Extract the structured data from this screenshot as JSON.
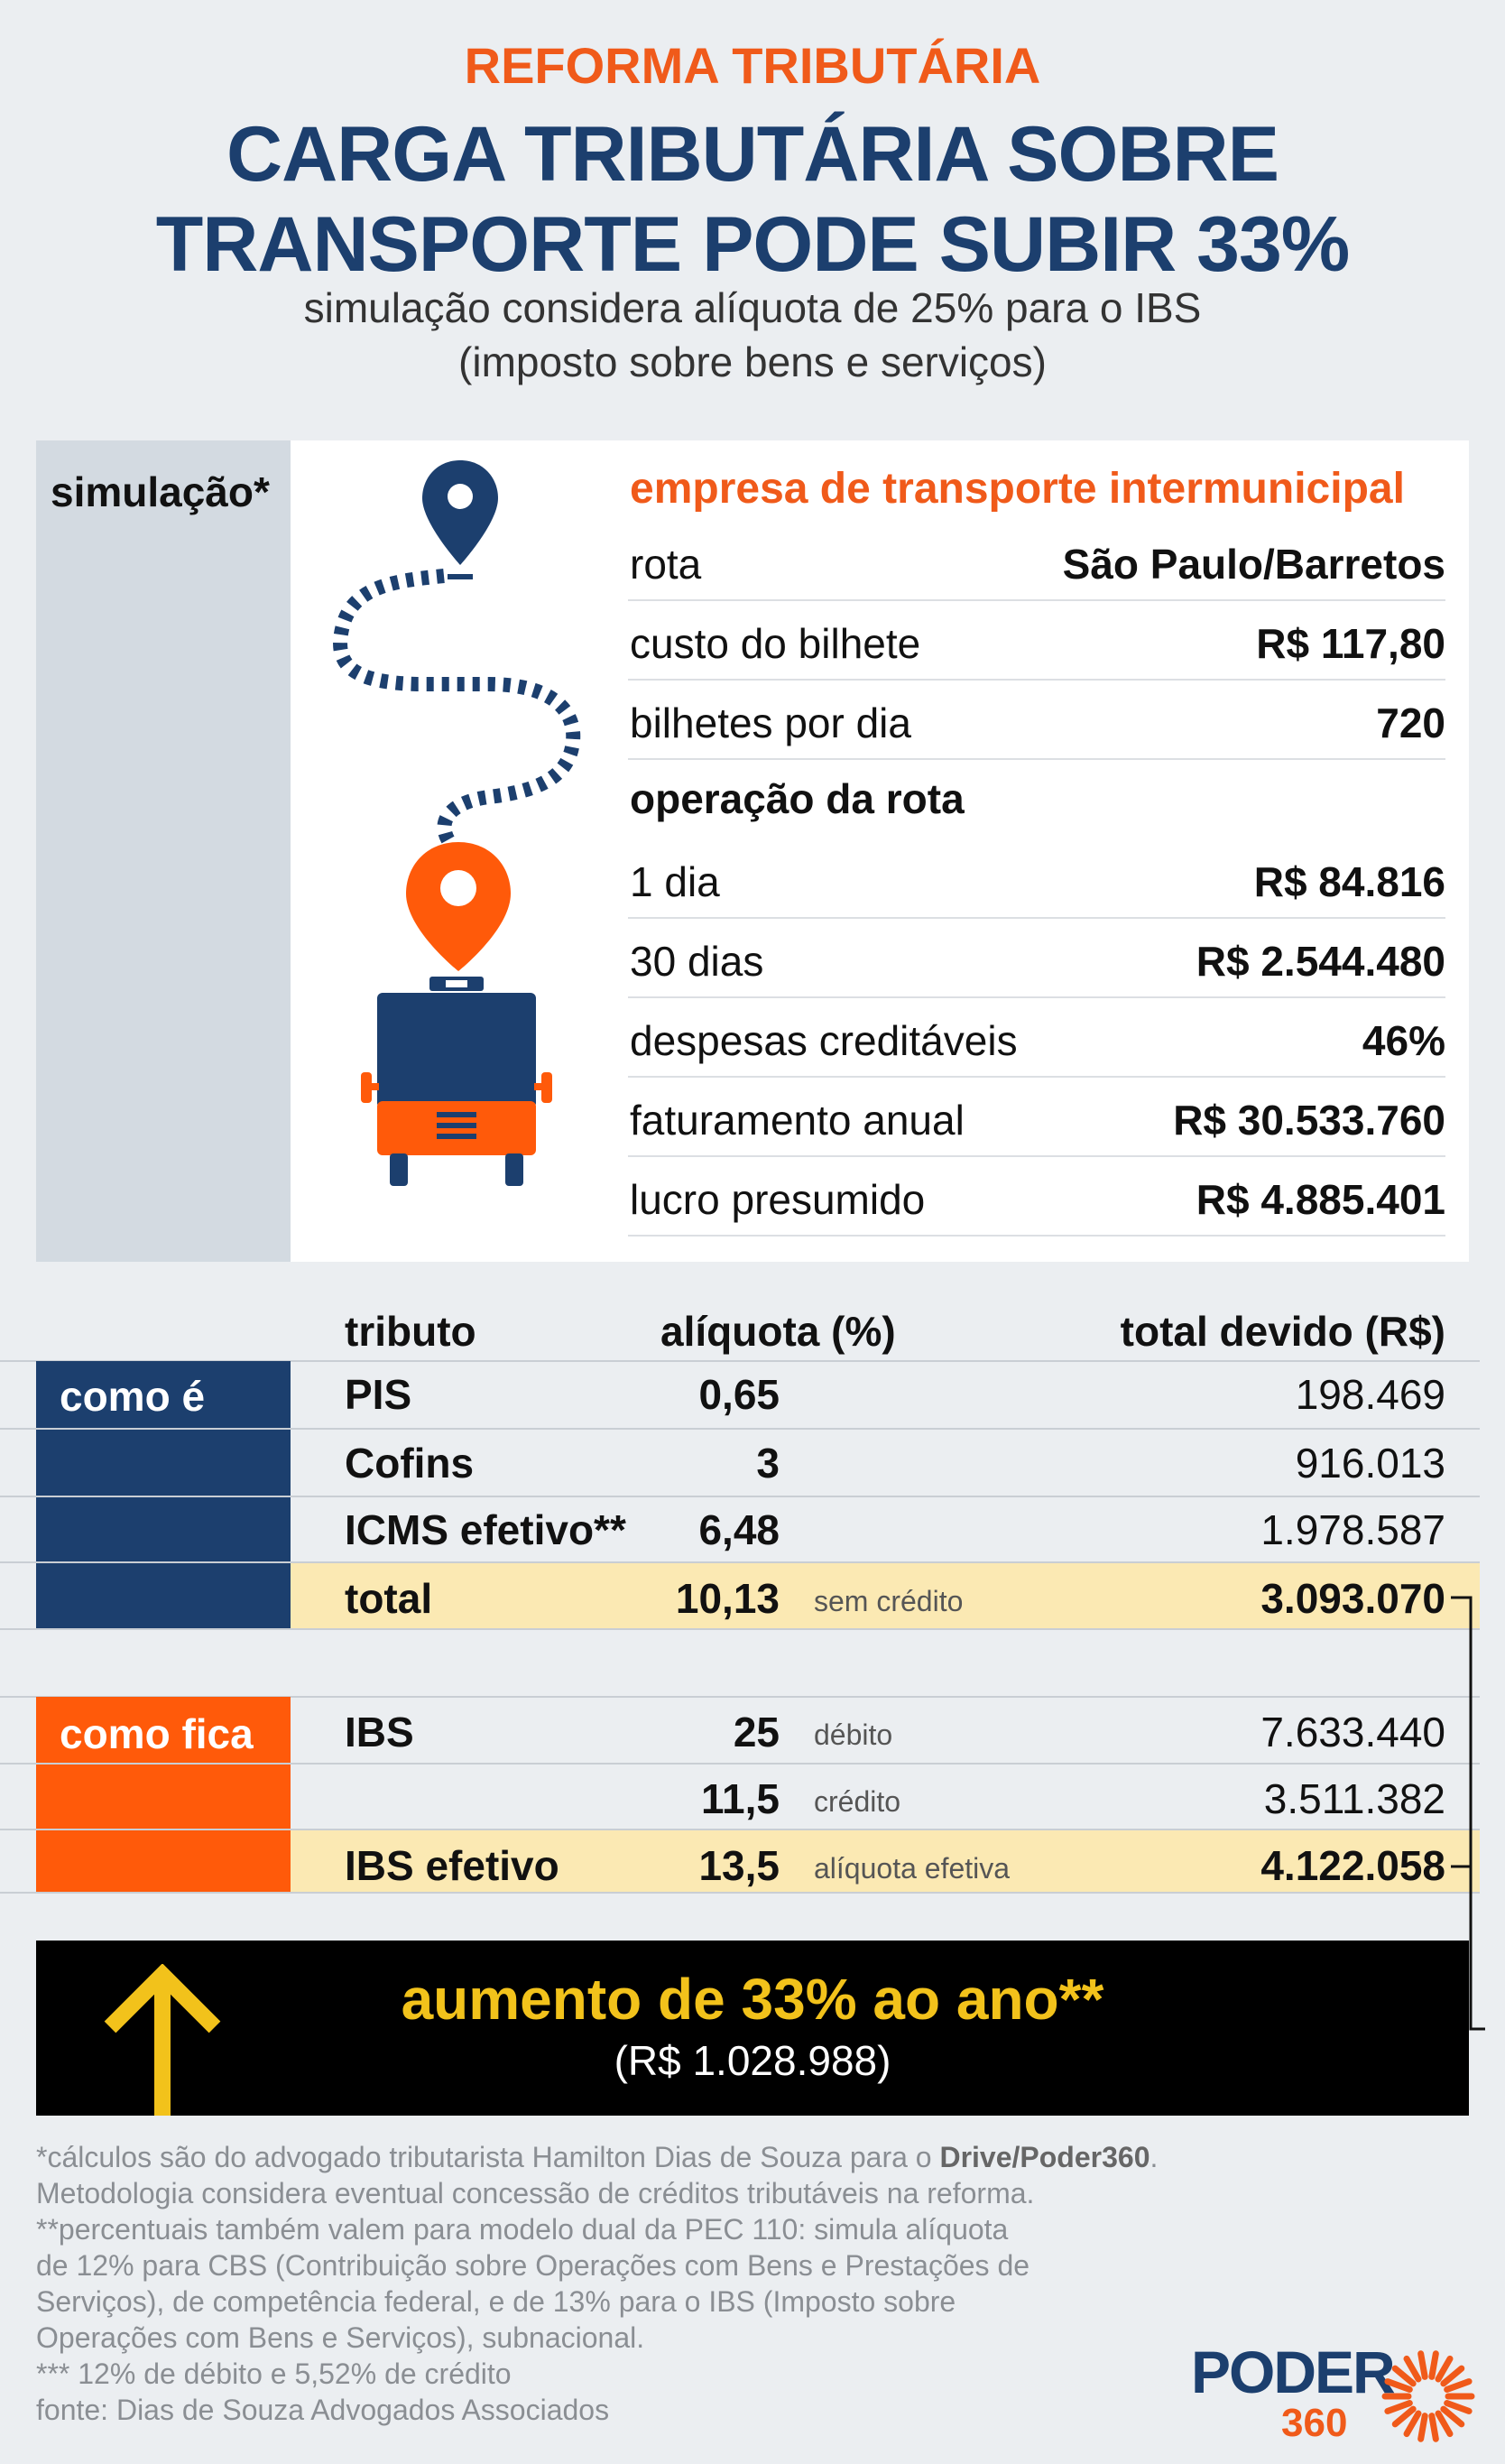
{
  "header": {
    "kicker": "REFORMA TRIBUTÁRIA",
    "title_line1": "CARGA TRIBUTÁRIA SOBRE",
    "title_line2": "TRANSPORTE PODE SUBIR 33%",
    "subtitle_line1": "simulação considera alíquota de 25% para o IBS",
    "subtitle_line2": "(imposto sobre bens e serviços)"
  },
  "simulation": {
    "label": "simulação*",
    "company_title": "empresa de transporte intermunicipal",
    "rows": [
      {
        "label": "rota",
        "value": "São Paulo/Barretos"
      },
      {
        "label": "custo do bilhete",
        "value": "R$ 117,80"
      },
      {
        "label": "bilhetes por dia",
        "value": "720"
      }
    ],
    "operation_title": "operação da rota",
    "operation_rows": [
      {
        "label": "1 dia",
        "value": "R$ 84.816"
      },
      {
        "label": "30 dias",
        "value": "R$ 2.544.480"
      },
      {
        "label": "despesas creditáveis",
        "value": "46%"
      },
      {
        "label": "faturamento anual",
        "value": "R$ 30.533.760"
      },
      {
        "label": "lucro presumido",
        "value": "R$ 4.885.401"
      }
    ],
    "icons": [
      "map-pin-icon",
      "dashed-route-icon",
      "bus-icon"
    ],
    "colors": {
      "navy": "#1c3f6e",
      "orange": "#ff5a0a"
    }
  },
  "tax_table": {
    "headers": {
      "tributo": "tributo",
      "aliquota": "alíquota (%)",
      "total": "total devido (R$)"
    },
    "current": {
      "label": "como é",
      "rows": [
        {
          "tributo": "PIS",
          "aliquota": "0,65",
          "note": "",
          "total": "198.469"
        },
        {
          "tributo": "Cofins",
          "aliquota": "3",
          "note": "",
          "total": "916.013"
        },
        {
          "tributo": "ICMS efetivo**",
          "aliquota": "6,48",
          "note": "",
          "total": "1.978.587"
        }
      ],
      "total_row": {
        "tributo": "total",
        "aliquota": "10,13",
        "note": "sem crédito",
        "total": "3.093.070"
      }
    },
    "proposed": {
      "label": "como fica",
      "rows": [
        {
          "tributo": "IBS",
          "aliquota": "25",
          "note": "débito",
          "total": "7.633.440"
        },
        {
          "tributo": "",
          "aliquota": "11,5",
          "note": "crédito",
          "total": "3.511.382"
        }
      ],
      "total_row": {
        "tributo": "IBS efetivo",
        "aliquota": "13,5",
        "note": "alíquota efetiva",
        "total": "4.122.058"
      }
    }
  },
  "result": {
    "main": "aumento de 33% ao ano**",
    "sub": "(R$ 1.028.988)",
    "icon": "arrow-up-icon",
    "color": "#f2c21b"
  },
  "footnotes": {
    "line1_pre": "*cálculos são do advogado tributarista Hamilton Dias de Souza para o ",
    "line1_bold": "Drive/Poder360",
    "line1_post": ".",
    "lines": [
      "Metodologia considera eventual concessão de créditos tributáveis na reforma.",
      "**percentuais também valem para modelo dual da PEC 110: simula alíquota",
      "de 12% para CBS (Contribuição sobre Operações com Bens e Prestações de",
      "Serviços), de competência federal, e de 13% para o IBS (Imposto sobre",
      "Operações com Bens e Serviços), subnacional.",
      "*** 12% de débito e 5,52% de crédito",
      "fonte: Dias de Souza Advogados Associados"
    ]
  },
  "logo": {
    "name": "PODER",
    "number": "360"
  }
}
